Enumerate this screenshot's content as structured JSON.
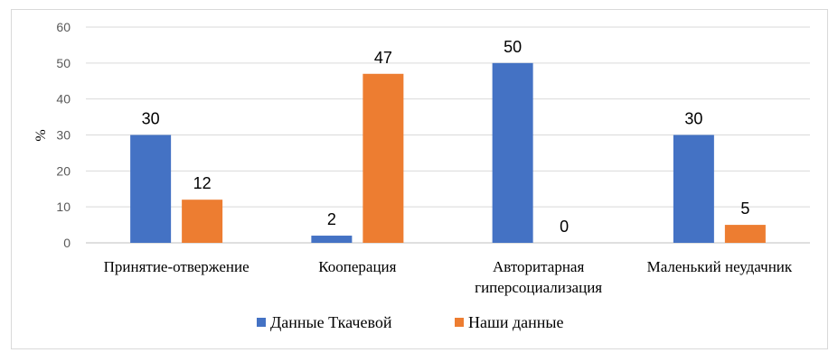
{
  "chart_data": {
    "type": "bar",
    "title": "",
    "xlabel": "",
    "ylabel": "%",
    "ylim": [
      0,
      60
    ],
    "yticks": [
      0,
      10,
      20,
      30,
      40,
      50,
      60
    ],
    "grid": true,
    "legend_position": "bottom",
    "categories": [
      [
        "Принятие-отвержение"
      ],
      [
        "Кооперация"
      ],
      [
        "Авторитарная",
        "гиперсоциализация"
      ],
      [
        "Маленький неудачник"
      ]
    ],
    "series": [
      {
        "name": "Данные Ткачевой",
        "color": "#4472c4",
        "values": [
          30,
          2,
          50,
          30
        ]
      },
      {
        "name": "Наши данные",
        "color": "#ed7d31",
        "values": [
          12,
          47,
          0,
          5
        ]
      }
    ]
  }
}
